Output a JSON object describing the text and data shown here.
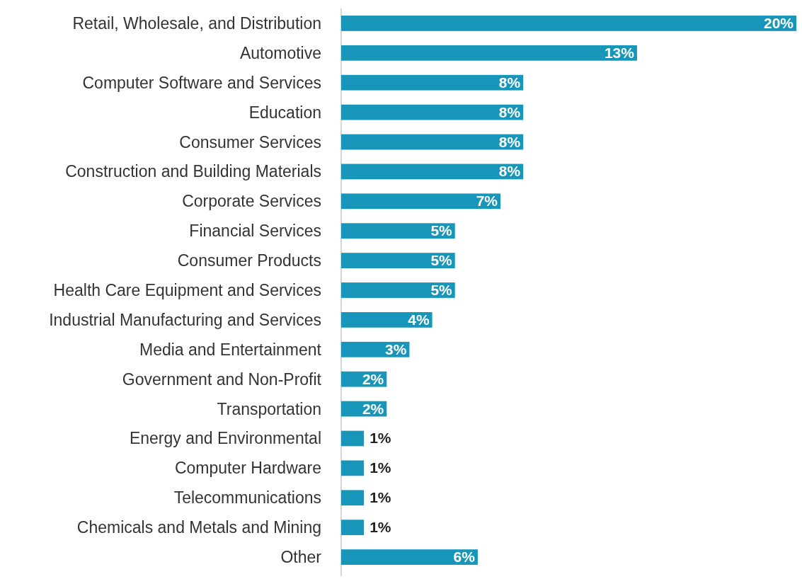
{
  "chart_data": {
    "type": "bar",
    "orientation": "horizontal",
    "color": "#1896ba",
    "categories": [
      "Retail, Wholesale, and Distribution",
      "Automotive",
      "Computer Software and Services",
      "Education",
      "Consumer Services",
      "Construction and Building Materials",
      "Corporate Services",
      "Financial Services",
      "Consumer Products",
      "Health Care Equipment and Services",
      "Industrial Manufacturing and Services",
      "Media and Entertainment",
      "Government and Non-Profit",
      "Transportation",
      "Energy and Environmental",
      "Computer Hardware",
      "Telecommunications",
      "Chemicals and Metals and Mining",
      "Other"
    ],
    "values": [
      20,
      13,
      8,
      8,
      8,
      8,
      7,
      5,
      5,
      5,
      4,
      3,
      2,
      2,
      1,
      1,
      1,
      1,
      6
    ],
    "value_labels": [
      "20%",
      "13%",
      "8%",
      "8%",
      "8%",
      "8%",
      "7%",
      "5%",
      "5%",
      "5%",
      "4%",
      "3%",
      "2%",
      "2%",
      "1%",
      "1%",
      "1%",
      "1%",
      "6%"
    ]
  }
}
